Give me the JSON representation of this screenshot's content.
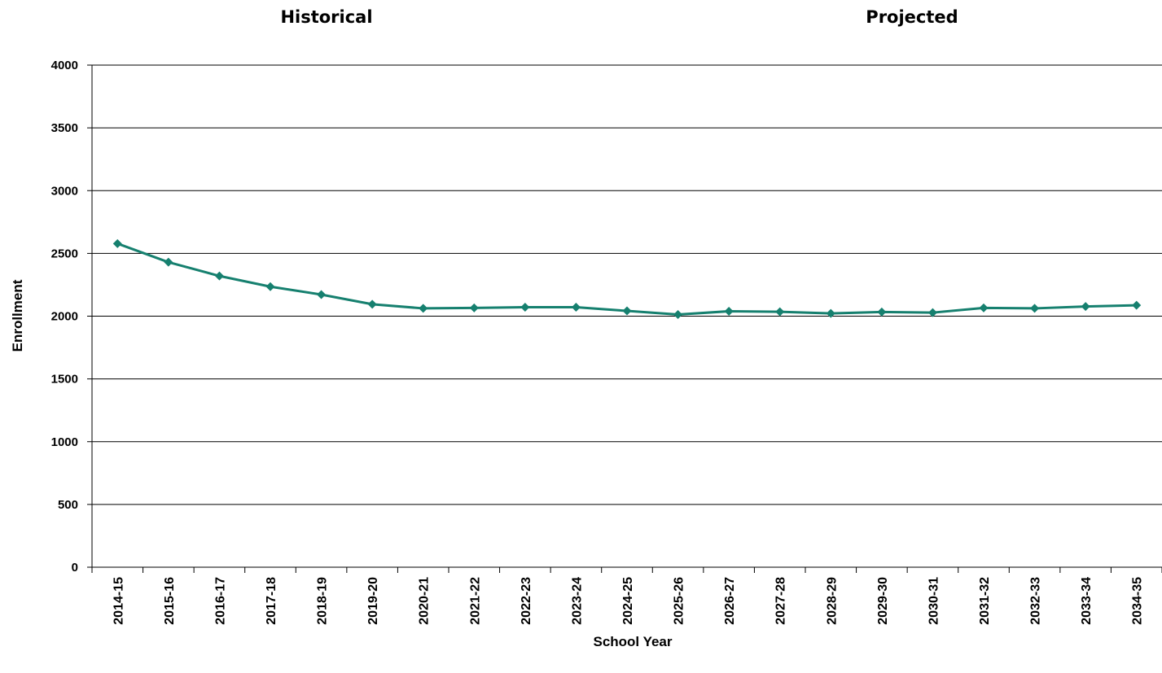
{
  "chart_data": {
    "type": "line",
    "section_labels": [
      "Historical",
      "Projected"
    ],
    "xlabel": "School Year",
    "ylabel": "Enrollment",
    "ylim": [
      0,
      4000
    ],
    "yticks": [
      0,
      500,
      1000,
      1500,
      2000,
      2500,
      3000,
      3500,
      4000
    ],
    "grid": true,
    "categories": [
      "2014-15",
      "2015-16",
      "2016-17",
      "2017-18",
      "2018-19",
      "2019-20",
      "2020-21",
      "2021-22",
      "2022-23",
      "2023-24",
      "2024-25",
      "2025-26",
      "2026-27",
      "2027-28",
      "2028-29",
      "2029-30",
      "2030-31",
      "2031-32",
      "2032-33",
      "2033-34",
      "2034-35"
    ],
    "series": [
      {
        "values": [
          2578,
          2430,
          2320,
          2235,
          2172,
          2095,
          2062,
          2066,
          2071,
          2071,
          2042,
          2013,
          2039,
          2035,
          2022,
          2033,
          2028,
          2066,
          2062,
          2077,
          2087
        ],
        "color": "#16806f"
      }
    ]
  }
}
